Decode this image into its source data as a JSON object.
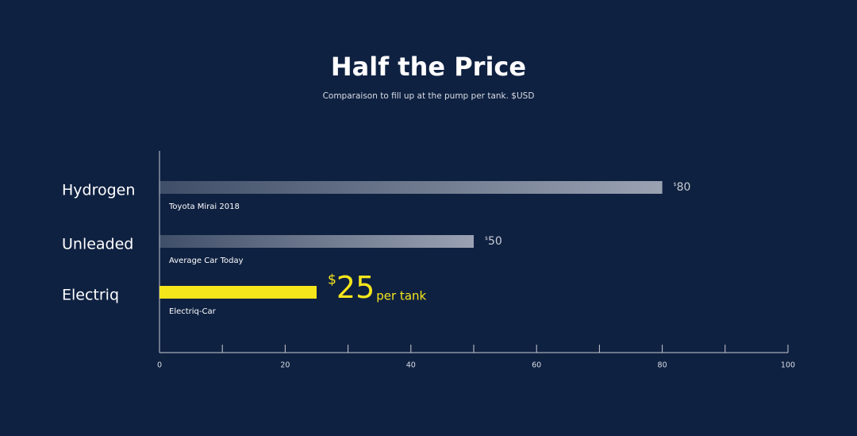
{
  "chart_data": {
    "type": "hbar",
    "title": "Half the Price",
    "subtitle": "Comparaison to fill up at the pump per tank. $USD",
    "categories": [
      "Hydrogen",
      "Unleaded",
      "Electriq"
    ],
    "sublabels": [
      "Toyota Mirai 2018",
      "Average Car Today",
      "Electriq-Car"
    ],
    "values": [
      80,
      50,
      25
    ],
    "value_labels": [
      "$80",
      "$50",
      "$25"
    ],
    "colors": [
      "#9aa2b2",
      "#9aa2b2",
      "#f5e61c"
    ],
    "highlight": 2,
    "annotation": "per tank",
    "xlim": [
      0,
      100
    ],
    "xticks": [
      0,
      20,
      40,
      60,
      80,
      100
    ],
    "xminorticks": [
      10,
      30,
      50,
      70,
      90
    ]
  }
}
